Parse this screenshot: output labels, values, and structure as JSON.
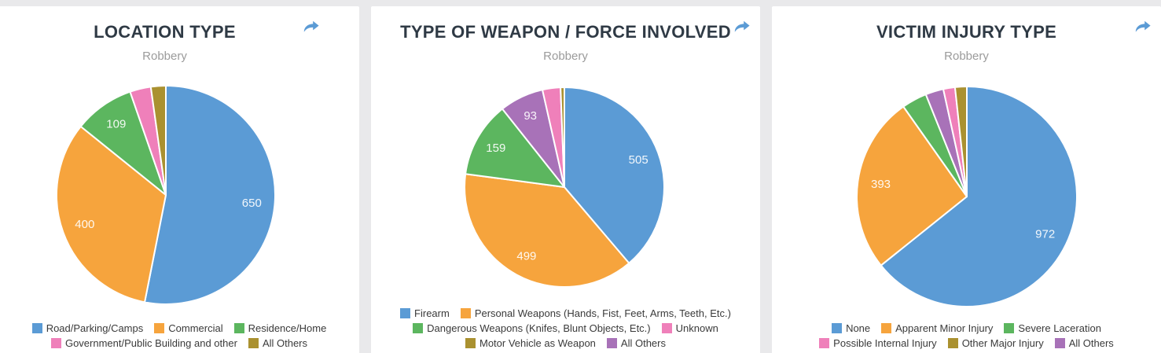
{
  "page": {
    "background_color": "#e9e9eb",
    "card_color": "#ffffff",
    "title_color": "#2f3a45",
    "subtitle_color": "#9b9b9b",
    "legend_text_color": "#3a3a3a",
    "share_icon_color": "#5b9bd5"
  },
  "icons": {
    "share": "curved-arrow-right"
  },
  "chart_data": [
    {
      "type": "pie",
      "title": "LOCATION TYPE",
      "subtitle": "Robbery",
      "start_angle_deg": 0,
      "direction": "clockwise",
      "legend_position": "bottom",
      "slices": [
        {
          "label": "Road/Parking/Camps",
          "value": 650,
          "value_label": "650",
          "color": "#5b9bd5"
        },
        {
          "label": "Commercial",
          "value": 400,
          "value_label": "400",
          "color": "#f6a43d"
        },
        {
          "label": "Residence/Home",
          "value": 109,
          "value_label": "109",
          "color": "#5cb65f"
        },
        {
          "label": "Government/Public Building and other",
          "value": 38,
          "value_label": "",
          "color": "#ef80ba",
          "estimated": true
        },
        {
          "label": "All Others",
          "value": 27,
          "value_label": "",
          "color": "#aa9130",
          "estimated": true
        }
      ],
      "legend": [
        {
          "label": "Road/Parking/Camps",
          "color": "#5b9bd5"
        },
        {
          "label": "Commercial",
          "color": "#f6a43d"
        },
        {
          "label": "Residence/Home",
          "color": "#5cb65f"
        },
        {
          "label": "Government/Public Building and other",
          "color": "#ef80ba"
        },
        {
          "label": "All Others",
          "color": "#aa9130"
        }
      ]
    },
    {
      "type": "pie",
      "title": "TYPE OF WEAPON / FORCE INVOLVED",
      "subtitle": "Robbery",
      "start_angle_deg": 0,
      "direction": "clockwise",
      "legend_position": "bottom",
      "slices": [
        {
          "label": "Firearm",
          "value": 505,
          "value_label": "505",
          "color": "#5b9bd5"
        },
        {
          "label": "Personal Weapons (Hands, Fist, Feet, Arms, Teeth, Etc.)",
          "value": 499,
          "value_label": "499",
          "color": "#f6a43d"
        },
        {
          "label": "Dangerous Weapons (Knifes, Blunt Objects, Etc.)",
          "value": 159,
          "value_label": "159",
          "color": "#5cb65f"
        },
        {
          "label": "All Others",
          "value": 93,
          "value_label": "93",
          "color": "#a872b8"
        },
        {
          "label": "Unknown",
          "value": 38,
          "value_label": "",
          "color": "#ef80ba",
          "estimated": true
        },
        {
          "label": "Motor Vehicle as Weapon",
          "value": 8,
          "value_label": "",
          "color": "#aa9130",
          "estimated": true
        }
      ],
      "legend": [
        {
          "label": "Firearm",
          "color": "#5b9bd5"
        },
        {
          "label": "Personal Weapons (Hands, Fist, Feet, Arms, Teeth, Etc.)",
          "color": "#f6a43d"
        },
        {
          "label": "Dangerous Weapons (Knifes, Blunt Objects, Etc.)",
          "color": "#5cb65f"
        },
        {
          "label": "Unknown",
          "color": "#ef80ba"
        },
        {
          "label": "Motor Vehicle as Weapon",
          "color": "#aa9130"
        },
        {
          "label": "All Others",
          "color": "#a872b8"
        }
      ]
    },
    {
      "type": "pie",
      "title": "VICTIM INJURY TYPE",
      "subtitle": "Robbery",
      "start_angle_deg": 0,
      "direction": "clockwise",
      "legend_position": "bottom",
      "slices": [
        {
          "label": "None",
          "value": 972,
          "value_label": "972",
          "color": "#5b9bd5"
        },
        {
          "label": "Apparent Minor Injury",
          "value": 393,
          "value_label": "393",
          "color": "#f6a43d"
        },
        {
          "label": "Severe Laceration",
          "value": 56,
          "value_label": "",
          "color": "#5cb65f",
          "estimated": true
        },
        {
          "label": "All Others",
          "value": 40,
          "value_label": "",
          "color": "#a872b8",
          "estimated": true
        },
        {
          "label": "Possible Internal Injury",
          "value": 26,
          "value_label": "",
          "color": "#ef80ba",
          "estimated": true
        },
        {
          "label": "Other Major Injury",
          "value": 26,
          "value_label": "",
          "color": "#aa9130",
          "estimated": true
        }
      ],
      "legend": [
        {
          "label": "None",
          "color": "#5b9bd5"
        },
        {
          "label": "Apparent Minor Injury",
          "color": "#f6a43d"
        },
        {
          "label": "Severe Laceration",
          "color": "#5cb65f"
        },
        {
          "label": "Possible Internal Injury",
          "color": "#ef80ba"
        },
        {
          "label": "Other Major Injury",
          "color": "#aa9130"
        },
        {
          "label": "All Others",
          "color": "#a872b8"
        }
      ]
    }
  ]
}
